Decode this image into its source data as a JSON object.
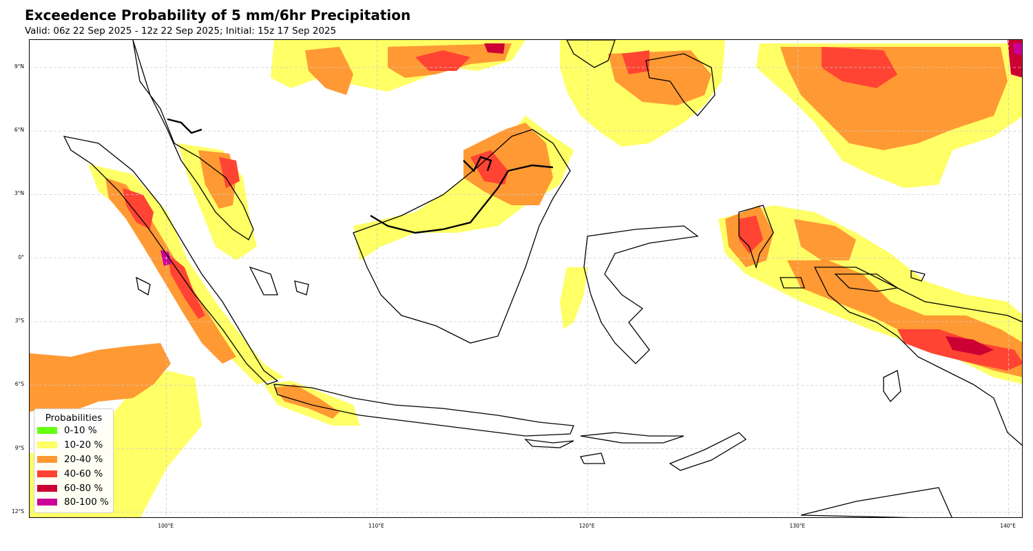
{
  "title": "Exceedence Probability of 5 mm/6hr Precipitation",
  "subtitle": "Valid: 06z 22 Sep 2025 - 12z 22 Sep 2025; Initial: 15z 17 Sep 2025",
  "map": {
    "lat_range": [
      -12.3,
      10.3
    ],
    "lon_range": [
      93.5,
      140.7
    ],
    "lat_ticks": [
      {
        "value": 9,
        "label": "9°N"
      },
      {
        "value": 6,
        "label": "6°N"
      },
      {
        "value": 3,
        "label": "3°N"
      },
      {
        "value": 0,
        "label": "0°"
      },
      {
        "value": -3,
        "label": "3°S"
      },
      {
        "value": -6,
        "label": "6°S"
      },
      {
        "value": -9,
        "label": "9°S"
      },
      {
        "value": -12,
        "label": "12°S"
      }
    ],
    "lon_ticks": [
      {
        "value": 100,
        "label": "100°E"
      },
      {
        "value": 110,
        "label": "110°E"
      },
      {
        "value": 120,
        "label": "120°E"
      },
      {
        "value": 130,
        "label": "130°E"
      },
      {
        "value": 140,
        "label": "140°E"
      }
    ],
    "grid": true
  },
  "legend": {
    "title": "Probabilities",
    "items": [
      {
        "label": "0-10 %",
        "color": "#66ff11"
      },
      {
        "label": "10-20 %",
        "color": "#ffff66"
      },
      {
        "label": "20-40 %",
        "color": "#ff9933"
      },
      {
        "label": "40-60 %",
        "color": "#ff4433"
      },
      {
        "label": "60-80 %",
        "color": "#cc0033"
      },
      {
        "label": "80-100 %",
        "color": "#cc0099"
      }
    ]
  }
}
